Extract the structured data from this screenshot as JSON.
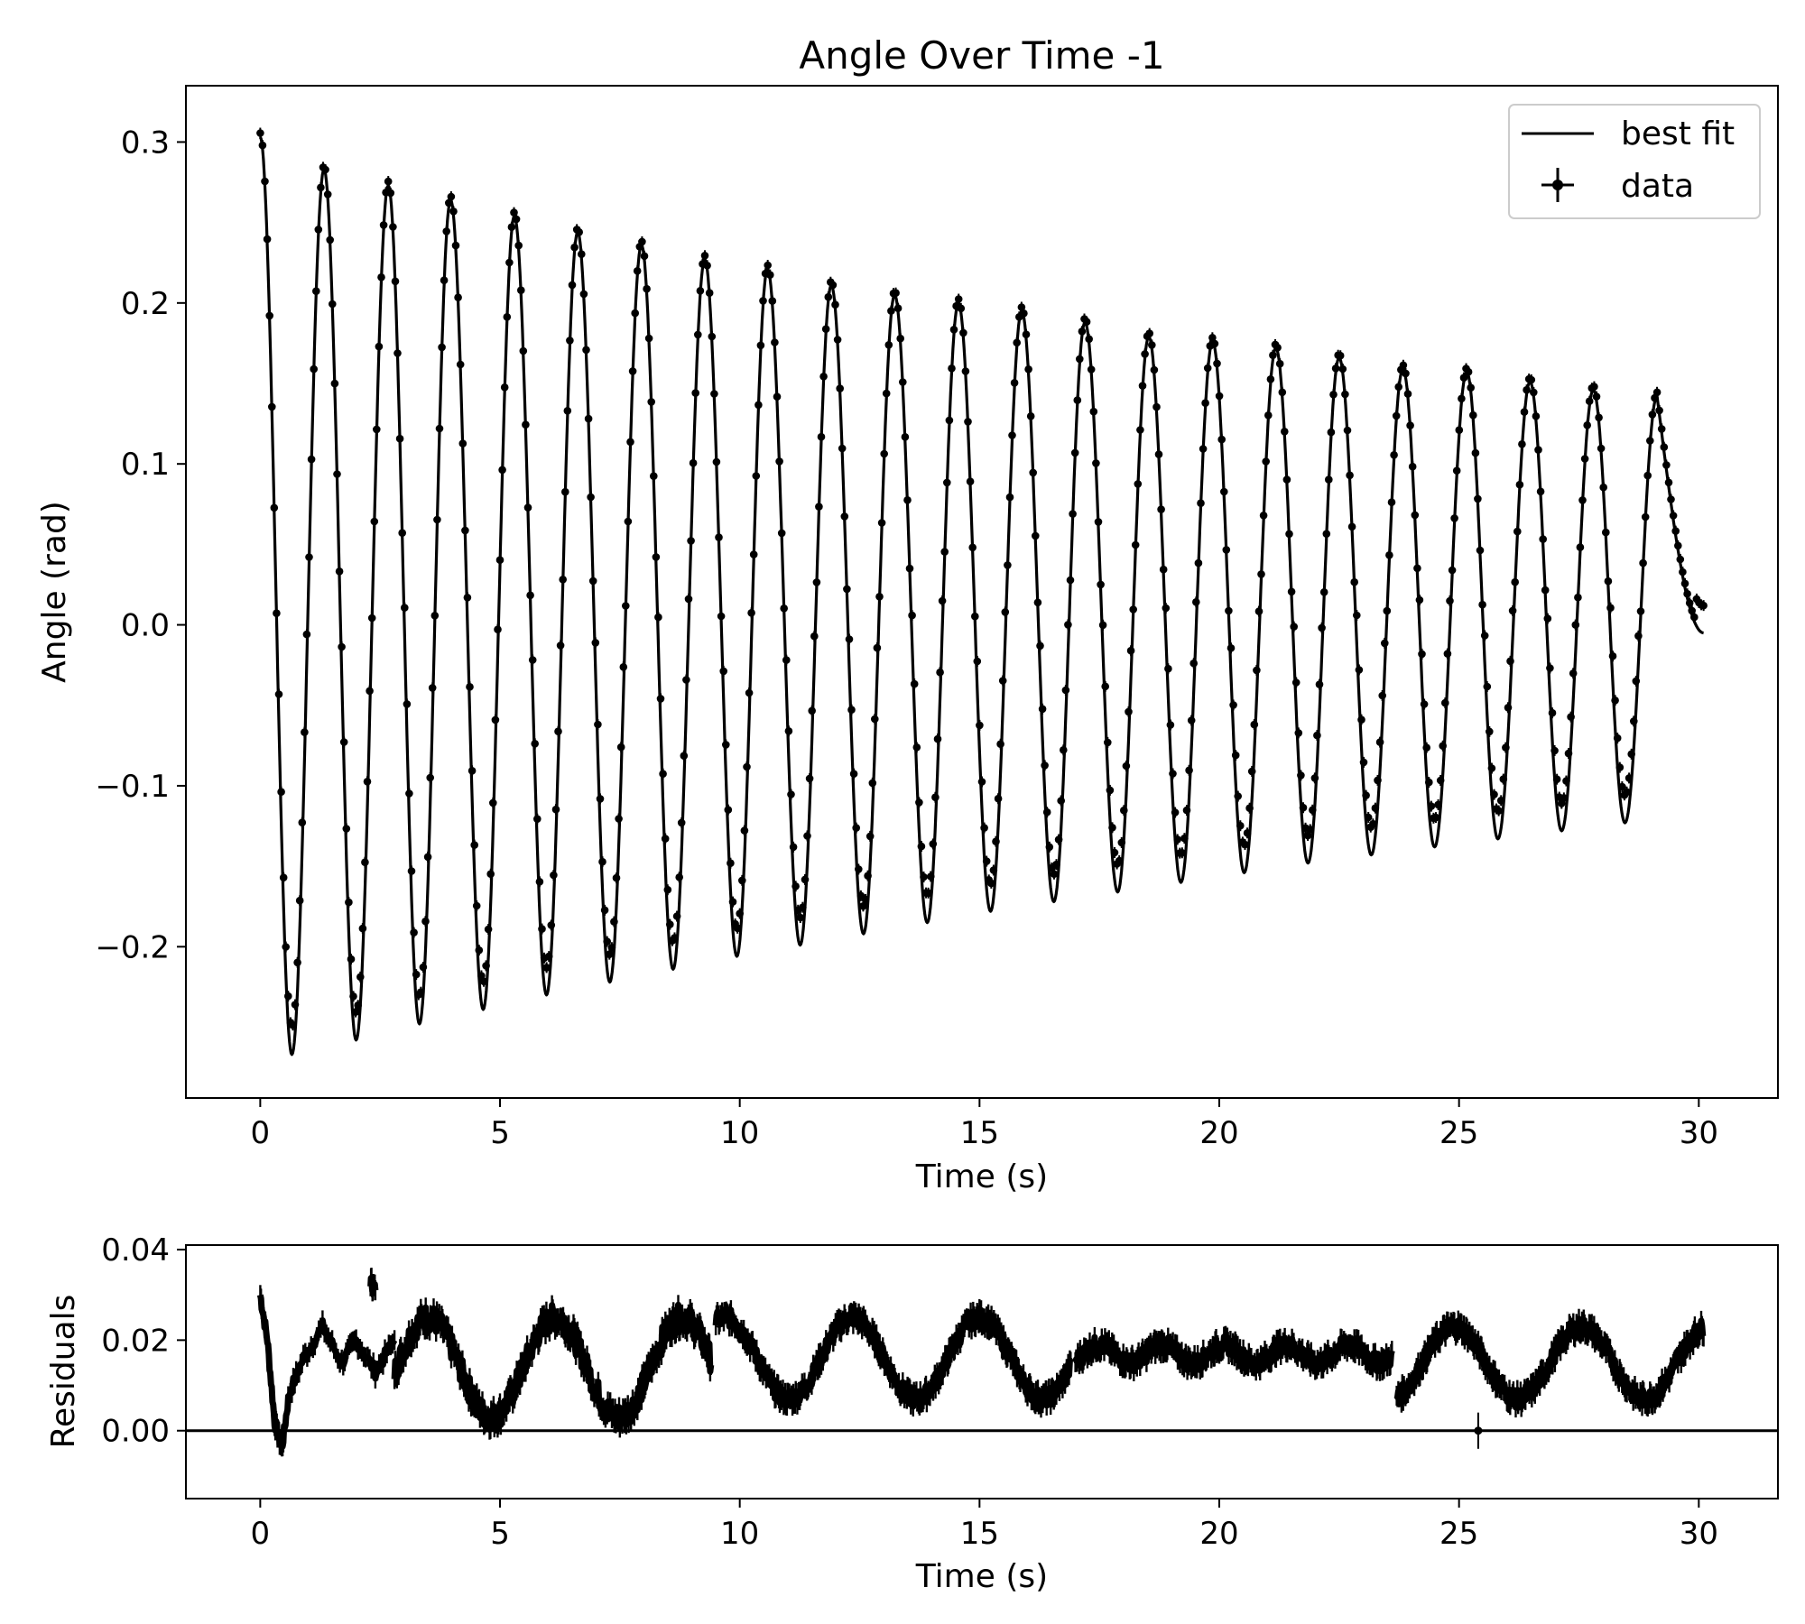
{
  "chart_data": [
    {
      "type": "line",
      "title": "Angle Over Time -1",
      "xlabel": "Time (s)",
      "ylabel": "Angle (rad)",
      "xlim": [
        -1.55,
        31.65
      ],
      "ylim": [
        -0.294,
        0.335
      ],
      "xticks": [
        0,
        5,
        10,
        15,
        20,
        25,
        30
      ],
      "xtick_labels": [
        "0",
        "5",
        "10",
        "15",
        "20",
        "25",
        "30"
      ],
      "yticks": [
        -0.2,
        -0.1,
        0.0,
        0.1,
        0.2,
        0.3
      ],
      "ytick_labels": [
        "−0.2",
        "−0.1",
        "0.0",
        "0.1",
        "0.2",
        "0.3"
      ],
      "grid": false,
      "legend": {
        "location": "upper right",
        "entries": [
          {
            "label": "best fit",
            "style": "line",
            "color": "#000000"
          },
          {
            "label": "data",
            "style": "errorbar-marker",
            "color": "#000000"
          }
        ]
      },
      "series": [
        {
          "name": "best fit",
          "kind": "line",
          "color": "#000000",
          "x_range": [
            0,
            30.1
          ],
          "peaks": [
            {
              "x": 0.0,
              "y": 0.303
            },
            {
              "x": 1.33,
              "y": 0.283
            },
            {
              "x": 2.67,
              "y": 0.273
            },
            {
              "x": 3.97,
              "y": 0.264
            },
            {
              "x": 5.3,
              "y": 0.254
            },
            {
              "x": 6.62,
              "y": 0.244
            },
            {
              "x": 7.95,
              "y": 0.236
            },
            {
              "x": 9.27,
              "y": 0.227
            },
            {
              "x": 10.58,
              "y": 0.221
            },
            {
              "x": 11.91,
              "y": 0.211
            },
            {
              "x": 13.23,
              "y": 0.205
            },
            {
              "x": 14.56,
              "y": 0.2
            },
            {
              "x": 15.88,
              "y": 0.195
            },
            {
              "x": 17.2,
              "y": 0.188
            },
            {
              "x": 18.53,
              "y": 0.179
            },
            {
              "x": 19.86,
              "y": 0.176
            },
            {
              "x": 21.18,
              "y": 0.172
            },
            {
              "x": 22.5,
              "y": 0.166
            },
            {
              "x": 23.83,
              "y": 0.159
            },
            {
              "x": 25.16,
              "y": 0.157
            },
            {
              "x": 26.48,
              "y": 0.151
            },
            {
              "x": 27.8,
              "y": 0.146
            },
            {
              "x": 29.13,
              "y": 0.142
            }
          ],
          "troughs": [
            {
              "x": 0.66,
              "y": -0.267
            },
            {
              "x": 2.0,
              "y": -0.258
            },
            {
              "x": 3.32,
              "y": -0.248
            },
            {
              "x": 4.65,
              "y": -0.239
            },
            {
              "x": 5.97,
              "y": -0.23
            },
            {
              "x": 7.29,
              "y": -0.222
            },
            {
              "x": 8.61,
              "y": -0.214
            },
            {
              "x": 9.94,
              "y": -0.206
            },
            {
              "x": 11.26,
              "y": -0.199
            },
            {
              "x": 12.58,
              "y": -0.192
            },
            {
              "x": 13.91,
              "y": -0.185
            },
            {
              "x": 15.23,
              "y": -0.178
            },
            {
              "x": 16.55,
              "y": -0.172
            },
            {
              "x": 17.88,
              "y": -0.166
            },
            {
              "x": 19.2,
              "y": -0.16
            },
            {
              "x": 20.52,
              "y": -0.154
            },
            {
              "x": 21.85,
              "y": -0.148
            },
            {
              "x": 23.17,
              "y": -0.143
            },
            {
              "x": 24.49,
              "y": -0.138
            },
            {
              "x": 25.81,
              "y": -0.133
            },
            {
              "x": 27.14,
              "y": -0.128
            },
            {
              "x": 28.46,
              "y": -0.123
            }
          ],
          "end": {
            "x": 30.1,
            "y": -0.005
          }
        },
        {
          "name": "data",
          "kind": "errorbar",
          "color": "#000000",
          "x_range": [
            0,
            30.1
          ],
          "y_offset_vs_fit": 0.017
        }
      ]
    },
    {
      "type": "line",
      "title": "",
      "xlabel": "Time (s)",
      "ylabel": "Residuals",
      "xlim": [
        -1.55,
        31.65
      ],
      "ylim": [
        -0.015,
        0.041
      ],
      "xticks": [
        0,
        5,
        10,
        15,
        20,
        25,
        30
      ],
      "xtick_labels": [
        "0",
        "5",
        "10",
        "15",
        "20",
        "25",
        "30"
      ],
      "yticks": [
        0.0,
        0.02,
        0.04
      ],
      "ytick_labels": [
        "0.00",
        "0.02",
        "0.04"
      ],
      "grid": false,
      "reference_line": {
        "y": 0.0,
        "color": "#000000"
      },
      "series": [
        {
          "name": "residuals",
          "kind": "errorbar",
          "color": "#000000",
          "segments": [
            {
              "x": [
                0.0,
                2.8
              ],
              "shape": [
                {
                  "x": 0.0,
                  "y": 0.03
                },
                {
                  "x": 0.15,
                  "y": 0.02
                },
                {
                  "x": 0.3,
                  "y": 0.002
                },
                {
                  "x": 0.45,
                  "y": -0.004
                },
                {
                  "x": 0.6,
                  "y": 0.008
                },
                {
                  "x": 0.9,
                  "y": 0.016
                },
                {
                  "x": 1.3,
                  "y": 0.023
                },
                {
                  "x": 1.7,
                  "y": 0.015
                },
                {
                  "x": 2.0,
                  "y": 0.02
                },
                {
                  "x": 2.4,
                  "y": 0.013
                },
                {
                  "x": 2.8,
                  "y": 0.02
                }
              ]
            },
            {
              "x": [
                2.3,
                2.4
              ],
              "shape": [
                {
                  "x": 2.3,
                  "y": 0.033
                },
                {
                  "x": 2.4,
                  "y": 0.031
                }
              ]
            },
            {
              "x": [
                2.8,
                9.4
              ],
              "base": 0.014,
              "amp": 0.011,
              "period": 2.65,
              "phase_x": 3.5,
              "ripple": 0.003
            },
            {
              "x": [
                9.5,
                16.9
              ],
              "base": 0.016,
              "amp": 0.009,
              "period": 2.65,
              "phase_x": 9.7,
              "ripple": 0.002
            },
            {
              "x": [
                17.0,
                23.6
              ],
              "base": 0.017,
              "amp": 0.002,
              "period": 1.3,
              "phase_x": 17.5,
              "ripple": 0.002
            },
            {
              "x": [
                23.7,
                30.1
              ],
              "base": 0.015,
              "amp": 0.008,
              "period": 2.65,
              "phase_x": 24.9,
              "ripple": 0.002
            }
          ],
          "outliers": [
            {
              "x": 25.4,
              "y": 0.0,
              "err": 0.004
            }
          ]
        }
      ]
    }
  ]
}
